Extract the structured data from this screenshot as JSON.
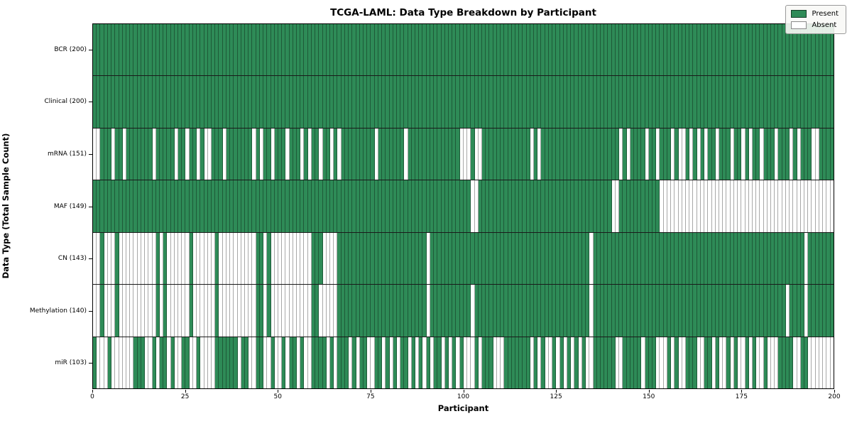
{
  "title": "TCGA-LAML: Data Type Breakdown by Participant",
  "x_axis": {
    "label": "Participant",
    "ticks": [
      0,
      25,
      50,
      75,
      100,
      125,
      150,
      175,
      200
    ],
    "range": [
      0,
      200
    ]
  },
  "y_axis": {
    "label": "Data Type (Total Sample Count)"
  },
  "legend": {
    "present_label": "Present",
    "absent_label": "Absent"
  },
  "colors": {
    "present": "#2e8b57",
    "absent": "#ffffff"
  },
  "chart_data": {
    "type": "heatmap",
    "title": "TCGA-LAML: Data Type Breakdown by Participant",
    "xlabel": "Participant",
    "ylabel": "Data Type (Total Sample Count)",
    "x_range": [
      0,
      200
    ],
    "n_participants": 200,
    "legend_entries": [
      "Present",
      "Absent"
    ],
    "legend_position": "upper right",
    "rows": [
      {
        "label": "BCR (200)",
        "data_type": "BCR",
        "present_count": 200,
        "presence": "11111111111111111111111111111111111111111111111111111111111111111111111111111111111111111111111111111111111111111111111111111111111111111111111111111111111111111111111111111111111111111111111111111111"
      },
      {
        "label": "Clinical (200)",
        "data_type": "Clinical",
        "present_count": 200,
        "presence": "11111111111111111111111111111111111111111111111111111111111111111111111111111111111111111111111111111111111111111111111111111111111111111111111111111111111111111111111111111111111111111111111111111111"
      },
      {
        "label": "mRNA (151)",
        "data_type": "mRNA",
        "present_count": 151,
        "presence": "00111011011111110111110110110100111011111110101101110111010110110101111111110111111101111111111111100010011111111111110101111111111111111111110101111011011101001010101101110110101101110111010111001111"
      },
      {
        "label": "MAF (149)",
        "data_type": "MAF",
        "present_count": 149,
        "presence": "11111111111111111111111111111111111111111111111111111111111111111111111111111111111111111111111111111100111111111111111111111111111111111111001111111111100000000000000000000000000000000000000000000000"
      },
      {
        "label": "CN (143)",
        "data_type": "CN",
        "present_count": 143,
        "presence": "00100010000000000101000000100000010000000000110100000000000111000011111111111111111111111101111111111111111111111111111111111111111111011111111111111111111111111111111111111111111111111111111101111111"
      },
      {
        "label": "Methylation (140)",
        "data_type": "Methylation",
        "present_count": 140,
        "presence": "00100010000000000101000000100000010000000000110100000000000110000011111111111111111111111101111111111101111111111111111111111111111111011111111111111111111111111111111111111111111111111110111101111111"
      },
      {
        "label": "miR (103)",
        "data_type": "miR",
        "present_count": 103,
        "presence": "10001000000111001011010011001000011111101100110010010110100111101011101011001101010110101010110101010001011100011111110101001010101010011111100111110111000101001110011010010100101001000111100110000000"
      }
    ]
  }
}
